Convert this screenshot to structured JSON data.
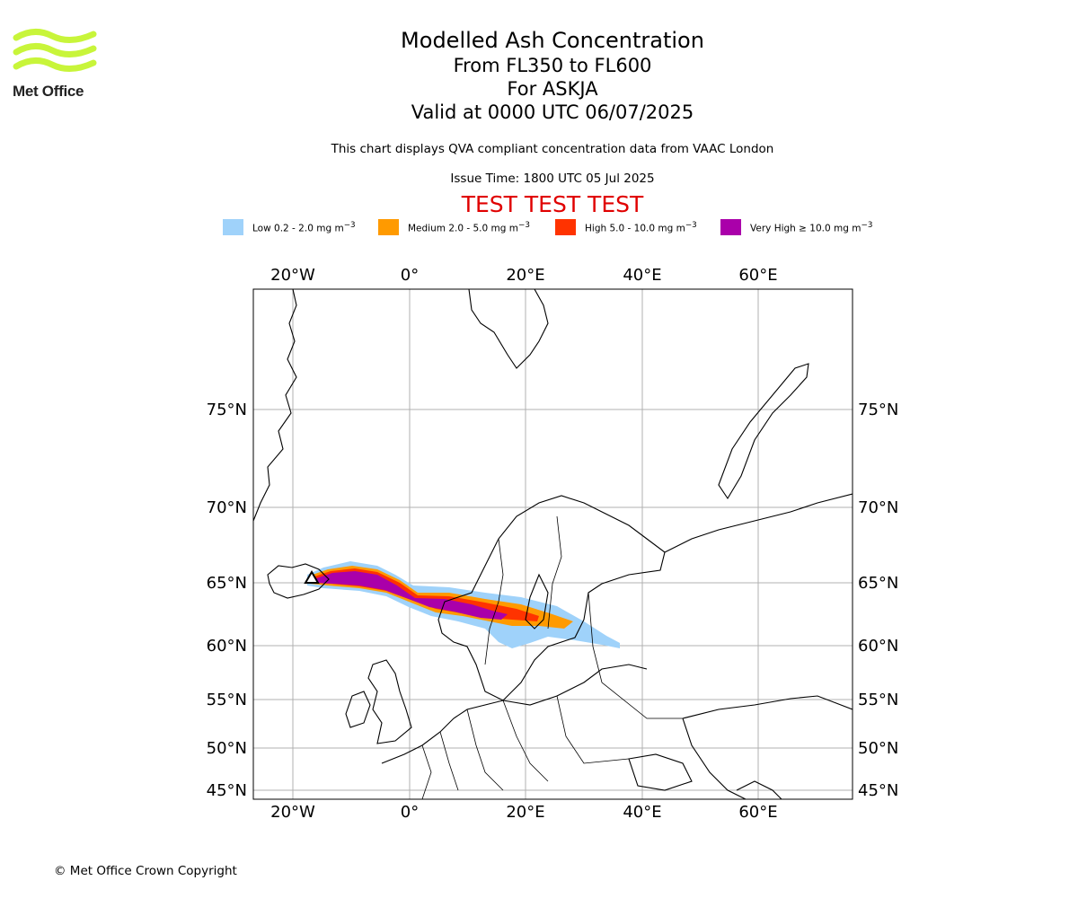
{
  "brand": {
    "name": "Met Office",
    "color": "#c8f53a"
  },
  "title": {
    "main": "Modelled Ash Concentration",
    "levels": "From FL350 to FL600",
    "volcano": "For ASKJA",
    "valid": "Valid at 0000 UTC 06/07/2025"
  },
  "note": "This chart displays QVA compliant concentration data from VAAC London",
  "issue_time": "Issue Time: 1800 UTC 05 Jul 2025",
  "test_banner": "TEST TEST TEST",
  "legend": [
    {
      "label": "Low 0.2 - 2.0 mg m",
      "sup": "−3",
      "color": "#9fd2fa"
    },
    {
      "label": "Medium 2.0 - 5.0 mg m",
      "sup": "−3",
      "color": "#ff9a00"
    },
    {
      "label": "High 5.0 - 10.0 mg m",
      "sup": "−3",
      "color": "#ff3300"
    },
    {
      "label": "Very High  ≥  10.0 mg m",
      "sup": "−3",
      "color": "#aa00aa"
    }
  ],
  "map": {
    "lon_labels": [
      "20°W",
      "0°",
      "20°E",
      "40°E",
      "60°E"
    ],
    "lat_labels": [
      "75°N",
      "70°N",
      "65°N",
      "60°N",
      "55°N",
      "50°N",
      "45°N"
    ],
    "grid": true,
    "volcano_marker": "triangle"
  },
  "copyright": "© Met Office Crown Copyright"
}
